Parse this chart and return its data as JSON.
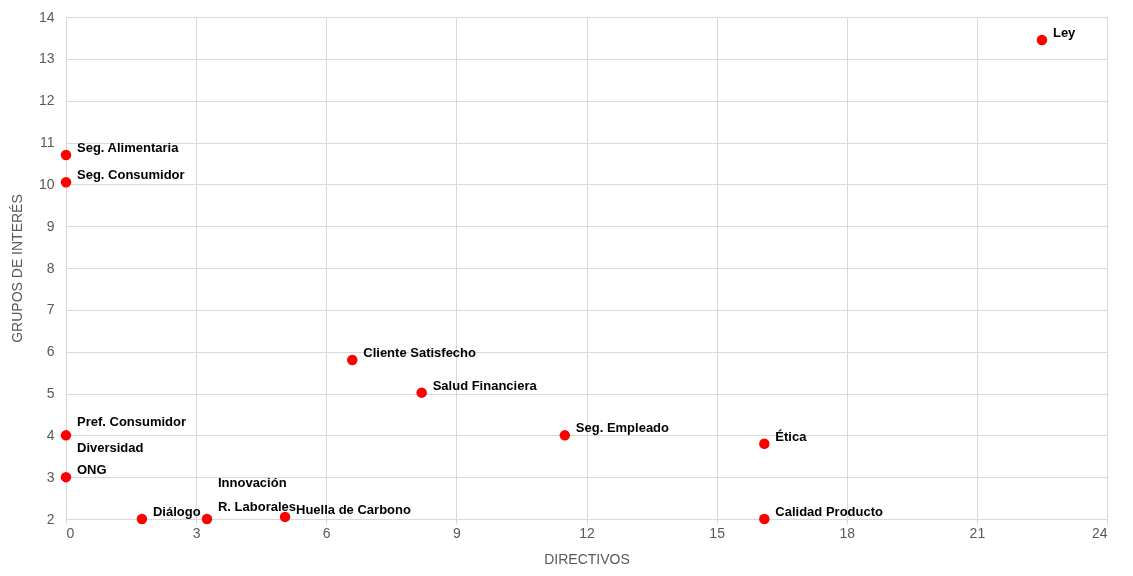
{
  "chart_data": {
    "type": "scatter",
    "xlabel": "DIRECTIVOS",
    "ylabel": "GRUPOS DE INTERÉS",
    "x": [
      22.5,
      0,
      0,
      6.6,
      8.2,
      11.5,
      16.1,
      0,
      0,
      1.75,
      3.25,
      5.05,
      16.1
    ],
    "series": [
      {
        "color": "#ff0000",
        "values": [
          13.45,
          10.7,
          10.05,
          5.8,
          5.02,
          4,
          3.8,
          4,
          3,
          2,
          2,
          2.05,
          2
        ]
      }
    ],
    "annotations": [
      {
        "text": "Ley",
        "x": 22.5,
        "y": 13.45
      },
      {
        "text": "Seg. Alimentaria",
        "x": 0,
        "y": 10.7
      },
      {
        "text": "Seg. Consumidor",
        "x": 0,
        "y": 10.05
      },
      {
        "text": "Cliente Satisfecho",
        "x": 6.6,
        "y": 5.8
      },
      {
        "text": "Salud Financiera",
        "x": 8.2,
        "y": 5.02
      },
      {
        "text": "Seg. Empleado",
        "x": 11.5,
        "y": 4
      },
      {
        "text": "Ética",
        "x": 16.1,
        "y": 3.8
      },
      {
        "text": "Pref. Consumidor",
        "x": 0,
        "y": 4
      },
      {
        "text": "Diversidad",
        "x": 0,
        "y": 4
      },
      {
        "text": "ONG",
        "x": 0,
        "y": 3
      },
      {
        "text": "Diálogo",
        "x": 1.75,
        "y": 2
      },
      {
        "text": "Innovación",
        "x": 3.25,
        "y": 2
      },
      {
        "text": "R. Laborales",
        "x": 3.25,
        "y": 2
      },
      {
        "text": "Huella de Carbono",
        "x": 5.05,
        "y": 2.05
      },
      {
        "text": "Calidad Producto",
        "x": 16.1,
        "y": 2
      }
    ],
    "xlim": [
      0,
      24
    ],
    "xticks": [
      0,
      3,
      6,
      9,
      12,
      15,
      18,
      21,
      24
    ],
    "ylim": [
      2,
      14
    ],
    "yticks": [
      2,
      3,
      4,
      5,
      6,
      7,
      8,
      9,
      10,
      11,
      12,
      13,
      14
    ],
    "grid": true,
    "marker": "circle",
    "legend": false
  }
}
